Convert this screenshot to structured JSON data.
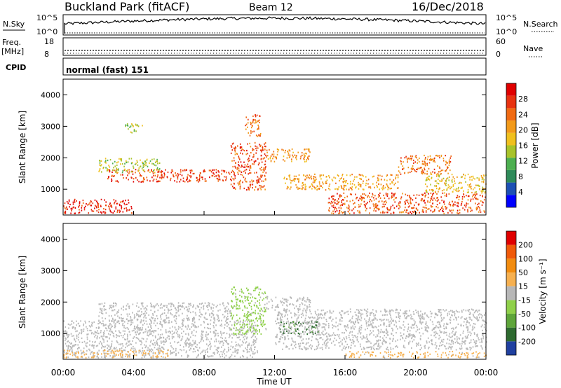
{
  "header": {
    "station": "Buckland Park (fitACF)",
    "beam": "Beam 12",
    "date": "16/Dec/2018"
  },
  "summary": {
    "nsky_label": "N.Sky",
    "nsky_ticks": [
      "10^5",
      "10^0"
    ],
    "nsearch_label": "N.Search",
    "nsearch_ticks": [
      "10^5",
      "10^0"
    ],
    "freq_label": "Freq.",
    "freq_unit": "[MHz]",
    "freq_ticks": [
      "18",
      "8"
    ],
    "nave_label": "Nave",
    "nave_ticks": [
      "60",
      "0"
    ],
    "cpid_label": "CPID",
    "cpid_value": "normal (fast) 151"
  },
  "colors": {
    "power": [
      "#0000ff",
      "#1d50b4",
      "#2e8a59",
      "#4caf50",
      "#a8c32a",
      "#f0c01e",
      "#f29a1a",
      "#f06a12",
      "#e83210",
      "#e00000"
    ],
    "velocity": [
      "#2040a0",
      "#2e6a30",
      "#5ea53a",
      "#8fd04a",
      "#b7b7b7",
      "#f6b050",
      "#f28c10",
      "#f05a0a",
      "#e00000"
    ],
    "ground_scatter": "#b9b9b9"
  },
  "chart_data": [
    {
      "type": "heatmap",
      "panel": "power",
      "ylabel": "Slant Range [km]",
      "yticks": [
        "1000",
        "2000",
        "3000",
        "4000"
      ],
      "ylim": [
        180,
        4500
      ],
      "xlim_hours": [
        0,
        24
      ],
      "xticks": [
        "00:00",
        "04:00",
        "08:00",
        "12:00",
        "16:00",
        "20:00",
        "00:00"
      ],
      "colorbar": {
        "label": "Power [dB]",
        "ticks": [
          "28",
          "24",
          "20",
          "16",
          "12",
          "8",
          "4"
        ],
        "range": [
          0,
          30
        ]
      },
      "echo_bands": [
        {
          "t0": 0.0,
          "t1": 4.0,
          "r0": 250,
          "r1": 700,
          "value": 27
        },
        {
          "t0": 2.5,
          "t1": 9.5,
          "r0": 1250,
          "r1": 1650,
          "value": 25
        },
        {
          "t0": 2.0,
          "t1": 5.5,
          "r0": 1550,
          "r1": 2000,
          "value": 14
        },
        {
          "t0": 9.5,
          "t1": 11.5,
          "r0": 1000,
          "r1": 2500,
          "value": 24
        },
        {
          "t0": 10.3,
          "t1": 11.2,
          "r0": 2700,
          "r1": 3400,
          "value": 22
        },
        {
          "t0": 11.5,
          "t1": 14.0,
          "r0": 1900,
          "r1": 2300,
          "value": 20
        },
        {
          "t0": 12.5,
          "t1": 19.0,
          "r0": 1000,
          "r1": 1500,
          "value": 19
        },
        {
          "t0": 15.0,
          "t1": 24.0,
          "r0": 250,
          "r1": 900,
          "value": 24
        },
        {
          "t0": 19.0,
          "t1": 22.0,
          "r0": 1500,
          "r1": 2100,
          "value": 22
        },
        {
          "t0": 20.5,
          "t1": 24.0,
          "r0": 900,
          "r1": 1500,
          "value": 17
        },
        {
          "t0": 3.5,
          "t1": 4.5,
          "r0": 2800,
          "r1": 3100,
          "value": 12
        }
      ]
    },
    {
      "type": "heatmap",
      "panel": "velocity",
      "xlabel": "Time UT",
      "ylabel": "Slant Range [km]",
      "yticks": [
        "1000",
        "2000",
        "3000",
        "4000"
      ],
      "ylim": [
        180,
        4500
      ],
      "xlim_hours": [
        0,
        24
      ],
      "xticks": [
        "00:00",
        "04:00",
        "08:00",
        "12:00",
        "16:00",
        "20:00",
        "00:00"
      ],
      "colorbar": {
        "label": "Velocity [m s⁻¹]",
        "ticks": [
          "200",
          "100",
          "50",
          "15",
          "-15",
          "-50",
          "-100",
          "-200"
        ],
        "range": [
          -250,
          250
        ]
      },
      "echo_bands": [
        {
          "t0": 0.0,
          "t1": 11.0,
          "r0": 250,
          "r1": 1450,
          "value": 0
        },
        {
          "t0": 2.0,
          "t1": 9.5,
          "r0": 1400,
          "r1": 2000,
          "value": 0
        },
        {
          "t0": 0.0,
          "t1": 6.0,
          "r0": 250,
          "r1": 500,
          "value": 40
        },
        {
          "t0": 9.5,
          "t1": 11.5,
          "r0": 1000,
          "r1": 2500,
          "value": -40
        },
        {
          "t0": 12.3,
          "t1": 14.5,
          "r0": 1000,
          "r1": 1400,
          "value": -150
        },
        {
          "t0": 12.0,
          "t1": 24.0,
          "r0": 500,
          "r1": 1800,
          "value": 0
        },
        {
          "t0": 16.0,
          "t1": 24.0,
          "r0": 250,
          "r1": 450,
          "value": 40
        },
        {
          "t0": 11.5,
          "t1": 14.0,
          "r0": 1800,
          "r1": 2200,
          "value": 0
        }
      ]
    }
  ]
}
